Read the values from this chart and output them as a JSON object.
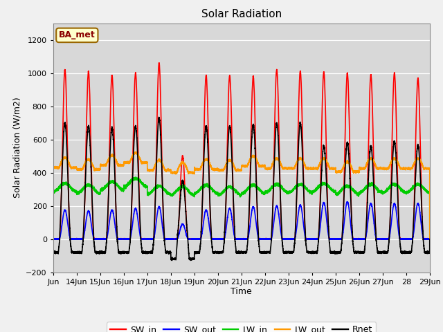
{
  "title": "Solar Radiation",
  "ylabel": "Solar Radiation (W/m2)",
  "xlabel": "Time",
  "ylim": [
    -200,
    1300
  ],
  "yticks": [
    -200,
    0,
    200,
    400,
    600,
    800,
    1000,
    1200
  ],
  "n_days": 16,
  "start_day": 13,
  "colors": {
    "SW_in": "#ff0000",
    "SW_out": "#0000ff",
    "LW_in": "#00cc00",
    "LW_out": "#ff9900",
    "Rnet": "#000000"
  },
  "legend_label": "BA_met",
  "legend_bg": "#ffffcc",
  "legend_border": "#996600",
  "plot_bg": "#d8d8d8",
  "linewidth": 1.2,
  "tick_label_size": 8,
  "sw_in_peaks": [
    1020,
    1010,
    985,
    1000,
    1060,
    500,
    985,
    985,
    980,
    1020,
    1010,
    1005,
    1000,
    990,
    1000,
    970
  ],
  "sw_out_peaks": [
    175,
    170,
    175,
    185,
    195,
    90,
    175,
    185,
    195,
    200,
    205,
    220,
    225,
    215,
    215,
    215
  ],
  "lw_out_base": [
    430,
    420,
    445,
    460,
    415,
    400,
    420,
    415,
    440,
    425,
    425,
    425,
    405,
    425,
    425,
    425
  ],
  "lw_in_base": [
    310,
    300,
    320,
    340,
    295,
    290,
    300,
    290,
    300,
    305,
    305,
    310,
    295,
    305,
    305,
    305
  ],
  "rnet_peaks": [
    700,
    680,
    670,
    680,
    730,
    350,
    680,
    680,
    690,
    700,
    700,
    560,
    580,
    560,
    590,
    565
  ],
  "rnet_night": [
    -80,
    -80,
    -80,
    -80,
    -80,
    -120,
    -80,
    -80,
    -80,
    -80,
    -80,
    -80,
    -80,
    -80,
    -80,
    -80
  ]
}
